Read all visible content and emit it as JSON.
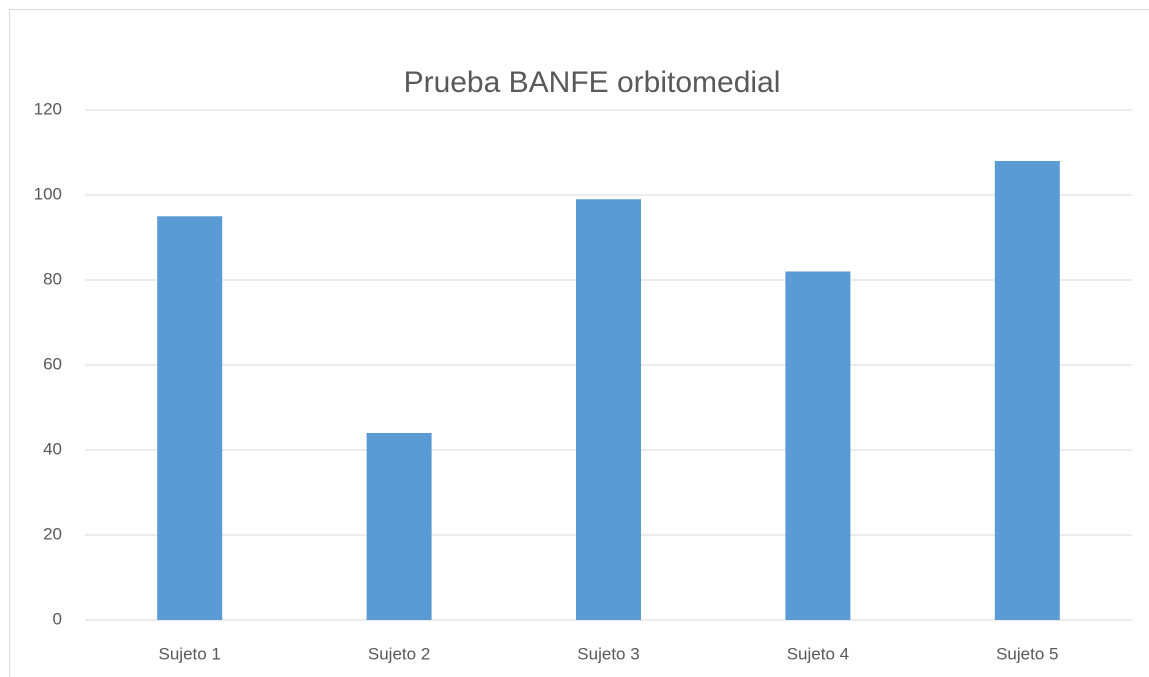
{
  "chart_data": {
    "type": "bar",
    "title": "Prueba BANFE orbitomedial",
    "categories": [
      "Sujeto 1",
      "Sujeto 2",
      "Sujeto 3",
      "Sujeto 4",
      "Sujeto 5"
    ],
    "values": [
      95,
      44,
      99,
      82,
      108
    ],
    "color": "#5b9bd5",
    "ylim": [
      0,
      120
    ],
    "yticks": [
      0,
      20,
      40,
      60,
      80,
      100,
      120
    ],
    "grid": true
  }
}
